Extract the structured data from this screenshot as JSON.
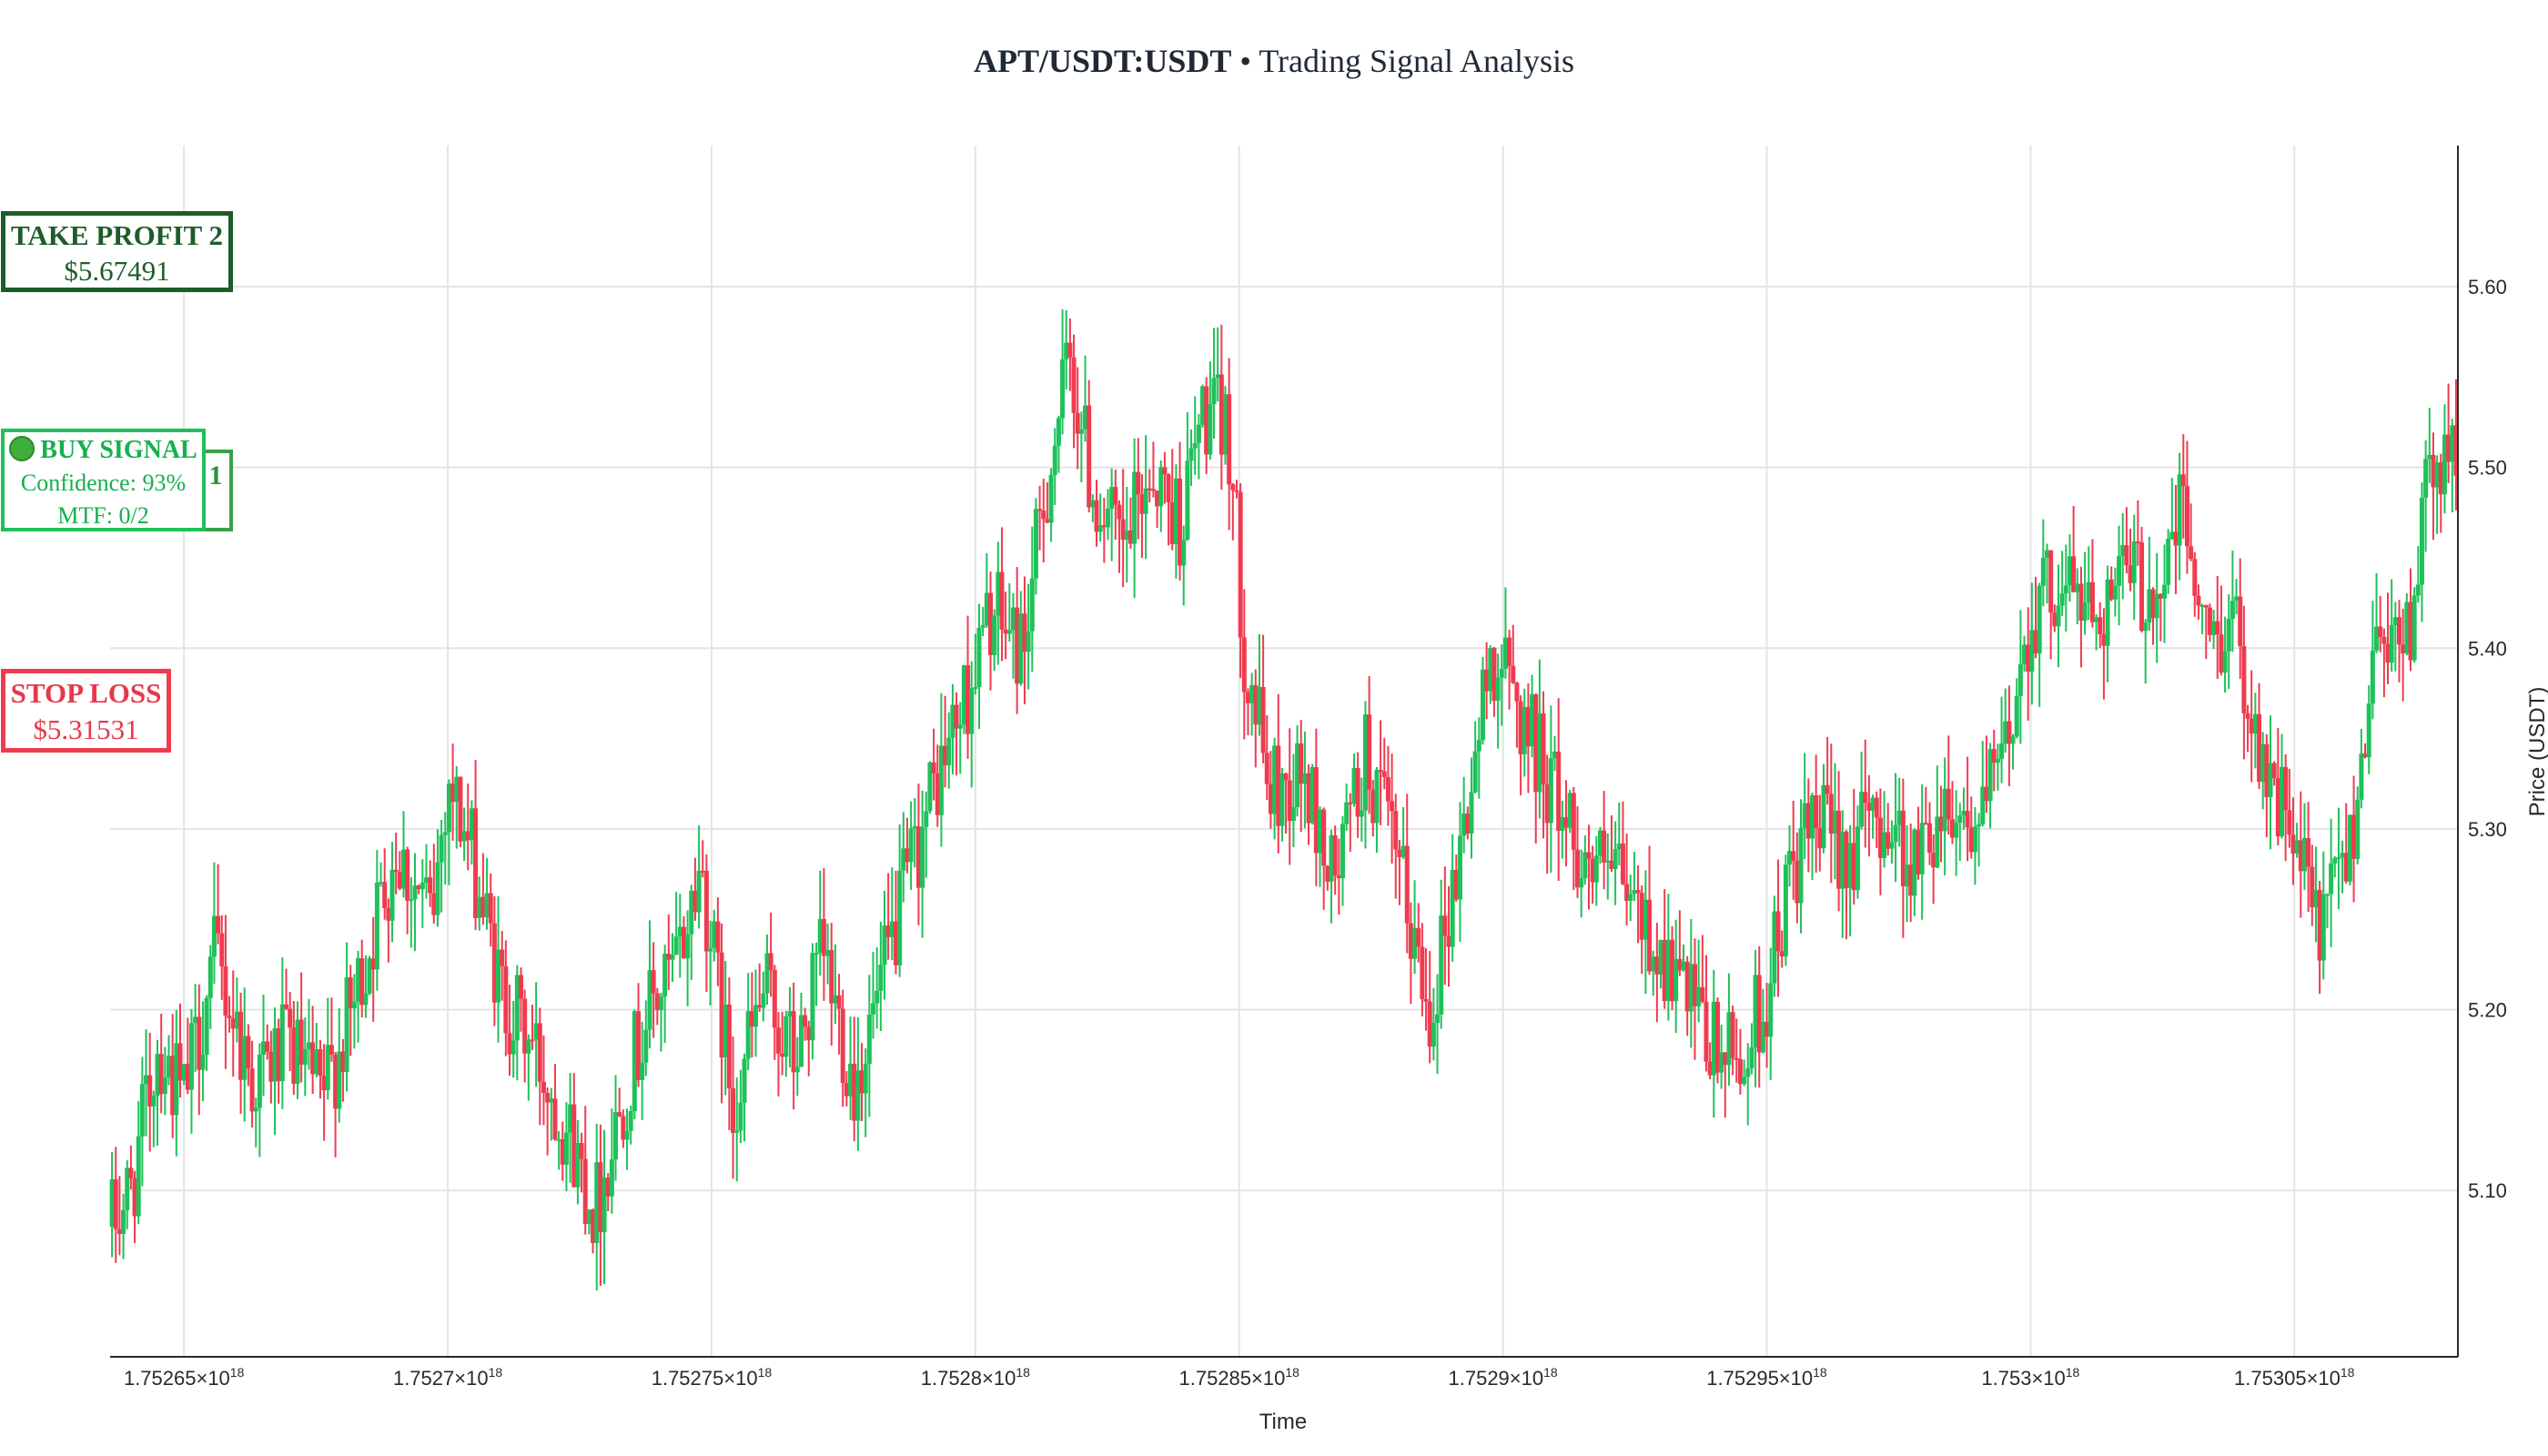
{
  "title": {
    "symbol": "APT/USDT:USDT",
    "rest": " • Trading Signal Analysis"
  },
  "colors": {
    "bull": "#1fc15a",
    "bear": "#ef3b4f",
    "grid": "#e4e4e4",
    "take_profit": "#1e5c2a",
    "buy_signal": "#1fc15a",
    "stop_loss": "#ef3b4f"
  },
  "annotations": {
    "take_profit_2": {
      "label": "TAKE PROFIT 2",
      "price": "$5.67491"
    },
    "buy_signal": {
      "icon": "green-circle-icon",
      "label": "BUY SIGNAL",
      "confidence": "Confidence: 93%",
      "mtf": "MTF: 0/2"
    },
    "take_profit_1": {
      "label": "1"
    },
    "stop_loss": {
      "label": "STOP LOSS",
      "price": "$5.31531"
    }
  },
  "chart_data": {
    "type": "candlestick",
    "title": "APT/USDT:USDT • Trading Signal Analysis",
    "xlabel": "Time",
    "ylabel": "Price (USDT)",
    "y_axis_side": "right",
    "xlim": [
      1752636000000000000,
      1753081000000000000
    ],
    "ylim": [
      5.008,
      5.678
    ],
    "grid": true,
    "x_ticks": [
      {
        "base": "1.75265×10",
        "exp": "18"
      },
      {
        "base": "1.7527×10",
        "exp": "18"
      },
      {
        "base": "1.75275×10",
        "exp": "18"
      },
      {
        "base": "1.7528×10",
        "exp": "18"
      },
      {
        "base": "1.75285×10",
        "exp": "18"
      },
      {
        "base": "1.7529×10",
        "exp": "18"
      },
      {
        "base": "1.75295×10",
        "exp": "18"
      },
      {
        "base": "1.753×10",
        "exp": "18"
      },
      {
        "base": "1.75305×10",
        "exp": "18"
      }
    ],
    "x_tick_values": [
      1752650000000000000,
      1752700000000000000,
      1752750000000000000,
      1752800000000000000,
      1752850000000000000,
      1752900000000000000,
      1752950000000000000,
      1753000000000000000,
      1753050000000000000
    ],
    "y_ticks": [
      5.1,
      5.2,
      5.3,
      5.4,
      5.5,
      5.6
    ],
    "y_tick_labels": [
      "5.10",
      "5.20",
      "5.30",
      "5.40",
      "5.50",
      "5.60"
    ],
    "close_path": [
      [
        1752636000000000000,
        5.08
      ],
      [
        1752640000000000000,
        5.1
      ],
      [
        1752645000000000000,
        5.18
      ],
      [
        1752650000000000000,
        5.15
      ],
      [
        1752656000000000000,
        5.23
      ],
      [
        1752663000000000000,
        5.16
      ],
      [
        1752670000000000000,
        5.18
      ],
      [
        1752676000000000000,
        5.15
      ],
      [
        1752682000000000000,
        5.2
      ],
      [
        1752690000000000000,
        5.29
      ],
      [
        1752697000000000000,
        5.25
      ],
      [
        1752700000000000000,
        5.33
      ],
      [
        1752705000000000000,
        5.28
      ],
      [
        1752710000000000000,
        5.21
      ],
      [
        1752716000000000000,
        5.18
      ],
      [
        1752722000000000000,
        5.14
      ],
      [
        1752728000000000000,
        5.09
      ],
      [
        1752733000000000000,
        5.15
      ],
      [
        1752738000000000000,
        5.2
      ],
      [
        1752743000000000000,
        5.22
      ],
      [
        1752748000000000000,
        5.28
      ],
      [
        1752754000000000000,
        5.15
      ],
      [
        1752760000000000000,
        5.21
      ],
      [
        1752766000000000000,
        5.17
      ],
      [
        1752771000000000000,
        5.23
      ],
      [
        1752777000000000000,
        5.16
      ],
      [
        1752782000000000000,
        5.21
      ],
      [
        1752787000000000000,
        5.27
      ],
      [
        1752793000000000000,
        5.33
      ],
      [
        1752799000000000000,
        5.38
      ],
      [
        1752803000000000000,
        5.42
      ],
      [
        1752809000000000000,
        5.4
      ],
      [
        1752814000000000000,
        5.5
      ],
      [
        1752818000000000000,
        5.56
      ],
      [
        1752822000000000000,
        5.49
      ],
      [
        1752828000000000000,
        5.45
      ],
      [
        1752833000000000000,
        5.5
      ],
      [
        1752839000000000000,
        5.47
      ],
      [
        1752843000000000000,
        5.53
      ],
      [
        1752848000000000000,
        5.52
      ],
      [
        1752851000000000000,
        5.4
      ],
      [
        1752856000000000000,
        5.32
      ],
      [
        1752862000000000000,
        5.33
      ],
      [
        1752868000000000000,
        5.27
      ],
      [
        1752874000000000000,
        5.34
      ],
      [
        1752880000000000000,
        5.28
      ],
      [
        1752886000000000000,
        5.2
      ],
      [
        1752892000000000000,
        5.29
      ],
      [
        1752898000000000000,
        5.4
      ],
      [
        1752904000000000000,
        5.36
      ],
      [
        1752910000000000000,
        5.32
      ],
      [
        1752916000000000000,
        5.28
      ],
      [
        1752922000000000000,
        5.27
      ],
      [
        1752928000000000000,
        5.24
      ],
      [
        1752934000000000000,
        5.21
      ],
      [
        1752939000000000000,
        5.18
      ],
      [
        1752945000000000000,
        5.17
      ],
      [
        1752950000000000000,
        5.21
      ],
      [
        1752955000000000000,
        5.28
      ],
      [
        1752960000000000000,
        5.3
      ],
      [
        1752966000000000000,
        5.29
      ],
      [
        1752972000000000000,
        5.31
      ],
      [
        1752978000000000000,
        5.28
      ],
      [
        1752984000000000000,
        5.32
      ],
      [
        1752990000000000000,
        5.3
      ],
      [
        1752995000000000000,
        5.34
      ],
      [
        1753000000000000000,
        5.42
      ],
      [
        1753006000000000000,
        5.44
      ],
      [
        1753012000000000000,
        5.42
      ],
      [
        1753018000000000000,
        5.44
      ],
      [
        1753024000000000000,
        5.43
      ],
      [
        1753029000000000000,
        5.48
      ],
      [
        1753033000000000000,
        5.4
      ],
      [
        1753038000000000000,
        5.42
      ],
      [
        1753044000000000000,
        5.34
      ],
      [
        1753049000000000000,
        5.3
      ],
      [
        1753055000000000000,
        5.24
      ],
      [
        1753061000000000000,
        5.3
      ],
      [
        1753066000000000000,
        5.42
      ],
      [
        1753071000000000000,
        5.4
      ],
      [
        1753076000000000000,
        5.5
      ],
      [
        1753081000000000000,
        5.51
      ]
    ]
  }
}
